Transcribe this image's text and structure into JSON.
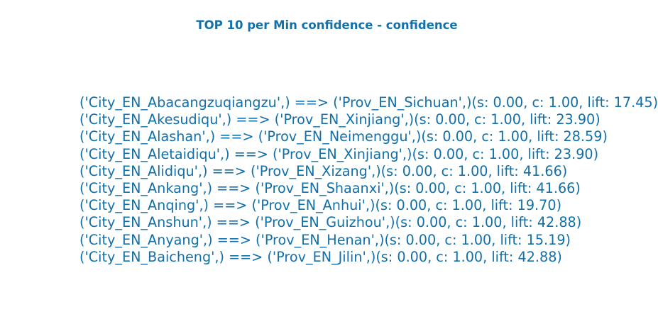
{
  "title": "TOP 10 per Min confidence - confidence",
  "colors": {
    "text": "#1170aa",
    "background": "#ffffff"
  },
  "rules": [
    "('City_EN_Abacangzuqiangzu',) ==> ('Prov_EN_Sichuan',)(s: 0.00, c: 1.00, lift: 17.45)",
    "('City_EN_Akesudiqu',) ==> ('Prov_EN_Xinjiang',)(s: 0.00, c: 1.00, lift: 23.90)",
    "('City_EN_Alashan',) ==> ('Prov_EN_Neimenggu',)(s: 0.00, c: 1.00, lift: 28.59)",
    "('City_EN_Aletaidiqu',) ==> ('Prov_EN_Xinjiang',)(s: 0.00, c: 1.00, lift: 23.90)",
    "('City_EN_Alidiqu',) ==> ('Prov_EN_Xizang',)(s: 0.00, c: 1.00, lift: 41.66)",
    "('City_EN_Ankang',) ==> ('Prov_EN_Shaanxi',)(s: 0.00, c: 1.00, lift: 41.66)",
    "('City_EN_Anqing',) ==> ('Prov_EN_Anhui',)(s: 0.00, c: 1.00, lift: 19.70)",
    "('City_EN_Anshun',) ==> ('Prov_EN_Guizhou',)(s: 0.00, c: 1.00, lift: 42.88)",
    "('City_EN_Anyang',) ==> ('Prov_EN_Henan',)(s: 0.00, c: 1.00, lift: 15.19)",
    "('City_EN_Baicheng',) ==> ('Prov_EN_Jilin',)(s: 0.00, c: 1.00, lift: 42.88)"
  ]
}
